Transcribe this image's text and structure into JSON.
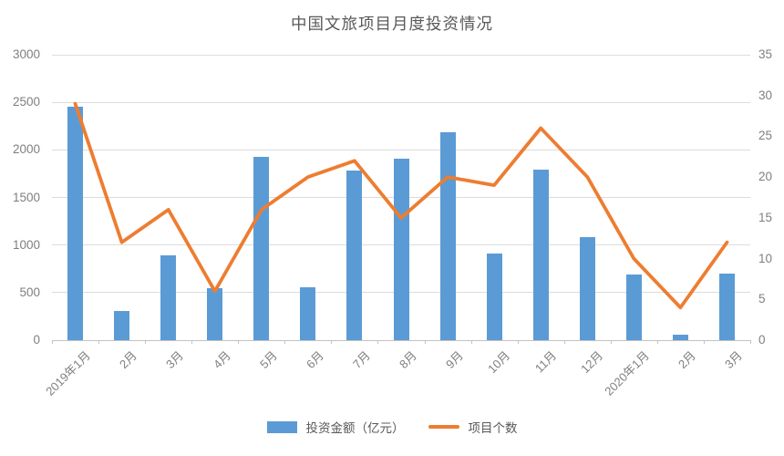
{
  "chart_data": {
    "type": "bar",
    "combo": "bar+line",
    "title": "中国文旅项目月度投资情况",
    "categories": [
      "2019年1月",
      "2月",
      "3月",
      "4月",
      "5月",
      "6月",
      "7月",
      "8月",
      "9月",
      "10月",
      "11月",
      "12月",
      "2020年1月",
      "2月",
      "3月"
    ],
    "series": [
      {
        "name": "投资金额（亿元）",
        "type": "bar",
        "axis": "left",
        "color": "#5B9BD5",
        "values": [
          2450,
          310,
          890,
          550,
          1930,
          560,
          1780,
          1910,
          2190,
          910,
          1790,
          1080,
          690,
          60,
          700
        ]
      },
      {
        "name": "项目个数",
        "type": "line",
        "axis": "right",
        "color": "#ED7D31",
        "values": [
          29,
          12,
          16,
          6,
          16,
          20,
          22,
          15,
          20,
          19,
          26,
          20,
          10,
          4,
          12
        ]
      }
    ],
    "left_axis": {
      "min": 0,
      "max": 3000,
      "step": 500,
      "ticks": [
        "0",
        "500",
        "1000",
        "1500",
        "2000",
        "2500",
        "3000"
      ]
    },
    "right_axis": {
      "min": 0,
      "max": 35,
      "step": 5,
      "ticks": [
        "0",
        "5",
        "10",
        "15",
        "20",
        "25",
        "30",
        "35"
      ]
    },
    "grid": true,
    "legend_position": "bottom"
  },
  "colors": {
    "bar": "#5B9BD5",
    "line": "#ED7D31",
    "grid": "#DCDCDC",
    "axis_line": "#C3C3C3",
    "tick_text": "#7F7F7F",
    "title_text": "#595959"
  }
}
